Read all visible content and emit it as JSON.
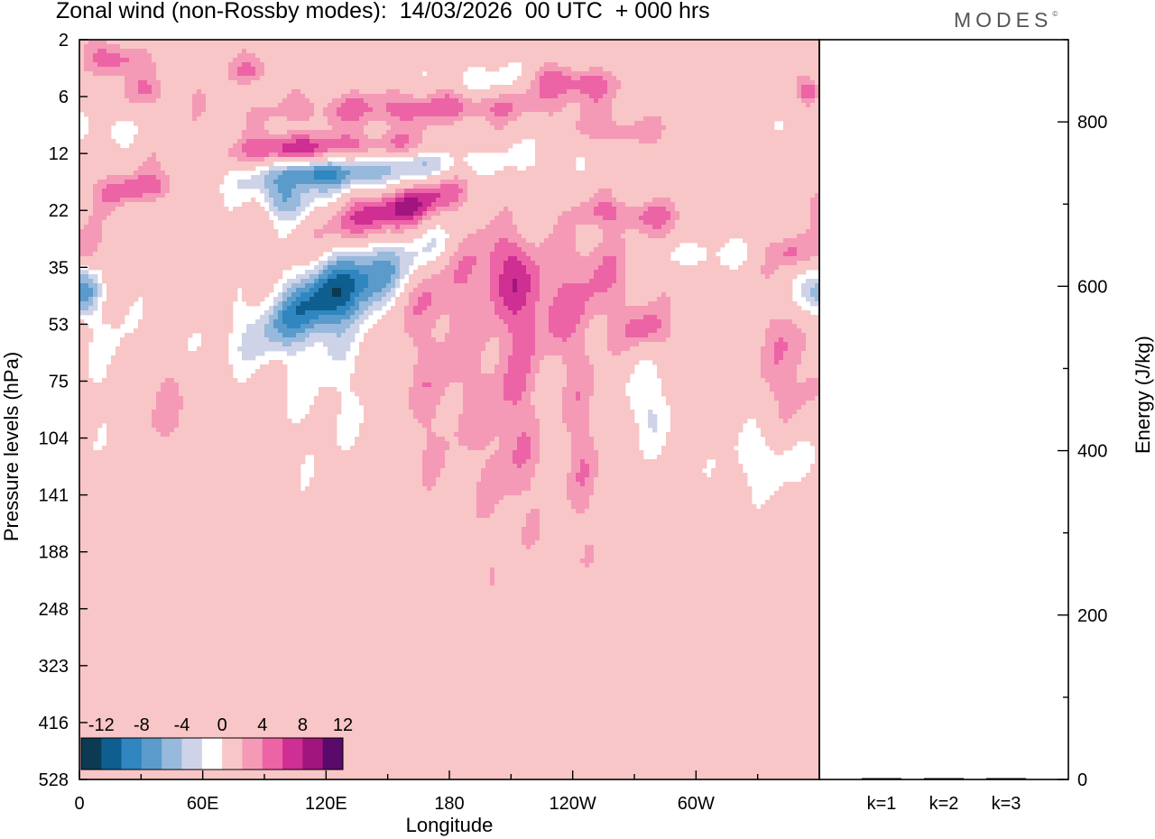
{
  "title": "Zonal wind (non-Rossby modes):  14/03/2026  00 UTC  + 000 hrs",
  "brand": "MODES",
  "brand_mark": "©",
  "chart_data": [
    {
      "type": "heatmap",
      "title": "Zonal wind (non-Rossby modes):  14/03/2026  00 UTC  + 000 hrs",
      "xlabel": "Longitude",
      "ylabel": "Pressure levels (hPa)",
      "x_ticks": [
        "0",
        "60E",
        "120E",
        "180",
        "120W",
        "60W"
      ],
      "x_tick_values": [
        0,
        60,
        120,
        180,
        240,
        300
      ],
      "xlim": [
        0,
        360
      ],
      "y_ticks": [
        "2",
        "6",
        "12",
        "22",
        "35",
        "53",
        "75",
        "104",
        "141",
        "188",
        "248",
        "323",
        "416",
        "528"
      ],
      "colorbar": {
        "labels": [
          "-12",
          "-8",
          "-4",
          "0",
          "4",
          "8",
          "12"
        ],
        "levels": [
          -14,
          -12,
          -10,
          -8,
          -6,
          -4,
          -2,
          2,
          4,
          6,
          8,
          10,
          12,
          14
        ],
        "colors": [
          "#0b3a52",
          "#0e5f8f",
          "#2f86c0",
          "#5b9bcb",
          "#97b9dc",
          "#cfd3e8",
          "#ffffff",
          "#f8c6c6",
          "#f49ab6",
          "#ec64a6",
          "#cf2e92",
          "#a1157f",
          "#5a0a6a"
        ]
      },
      "features": [
        {
          "lon": 140,
          "lev": 2.2,
          "w": 62,
          "h": 0.45,
          "slope": 60,
          "v": -10
        },
        {
          "lon": 130,
          "lev": 1.95,
          "w": 55,
          "h": 0.32,
          "slope": 60,
          "v": 10
        },
        {
          "lon": 152,
          "lev": 3.0,
          "w": 24,
          "h": 0.55,
          "slope": 40,
          "v": 9
        },
        {
          "lon": 134,
          "lev": 4.3,
          "w": 28,
          "h": 1.05,
          "slope": 40,
          "v": -12
        },
        {
          "lon": 100,
          "lev": 2.85,
          "w": 12,
          "h": 0.35,
          "slope": 0,
          "v": -6
        },
        {
          "lon": 18,
          "lev": 0.35,
          "w": 13,
          "h": 0.3,
          "slope": 0,
          "v": 6
        },
        {
          "lon": 30,
          "lev": 2.6,
          "w": 25,
          "h": 0.3,
          "slope": 30,
          "v": 6
        },
        {
          "lon": 165,
          "lev": 1.2,
          "w": 75,
          "h": 0.3,
          "slope": 60,
          "v": 5
        },
        {
          "lon": 210,
          "lev": 4.1,
          "w": 20,
          "h": 1.4,
          "slope": -15,
          "v": 5
        },
        {
          "lon": 250,
          "lev": 4.2,
          "w": 20,
          "h": 1.0,
          "slope": 0,
          "v": 4
        },
        {
          "lon": 210,
          "lev": 6.6,
          "w": 14,
          "h": 2.3,
          "slope": 0,
          "v": 4
        },
        {
          "lon": 120,
          "lev": 5.3,
          "w": 25,
          "h": 2.2,
          "slope": 0,
          "v": -3
        },
        {
          "lon": 176,
          "lev": 5.8,
          "w": 20,
          "h": 2.0,
          "slope": 0,
          "v": 3
        },
        {
          "lon": 165,
          "lev": 4.0,
          "w": 25,
          "h": 0.8,
          "slope": 0,
          "v": 4
        },
        {
          "lon": 280,
          "lev": 3.1,
          "w": 18,
          "h": 0.25,
          "slope": 0,
          "v": 4
        },
        {
          "lon": 277,
          "lev": 5.1,
          "w": 12,
          "h": 0.4,
          "slope": 0,
          "v": 5
        },
        {
          "lon": 276,
          "lev": 6.4,
          "w": 14,
          "h": 0.8,
          "slope": 0,
          "v": -4
        },
        {
          "lon": 300,
          "lev": 3.7,
          "w": 22,
          "h": 0.35,
          "slope": 0,
          "v": -4
        },
        {
          "lon": 336,
          "lev": 7.4,
          "w": 22,
          "h": 0.6,
          "slope": 0,
          "v": -4
        },
        {
          "lon": 347,
          "lev": 5.6,
          "w": 14,
          "h": 1.3,
          "slope": 0,
          "v": 4
        },
        {
          "lon": 356,
          "lev": 4.5,
          "w": 10,
          "h": 0.45,
          "slope": 0,
          "v": -6
        },
        {
          "lon": 4,
          "lev": 4.4,
          "w": 8,
          "h": 0.4,
          "slope": 0,
          "v": -5
        },
        {
          "lon": 238,
          "lev": 0.75,
          "w": 22,
          "h": 0.28,
          "slope": 0,
          "v": 6
        },
        {
          "lon": 260,
          "lev": 1.6,
          "w": 24,
          "h": 0.25,
          "slope": 0,
          "v": 4
        },
        {
          "lon": 290,
          "lev": 3.5,
          "w": 14,
          "h": 0.25,
          "slope": 0,
          "v": 3
        },
        {
          "lon": 200,
          "lev": 0.7,
          "w": 24,
          "h": 0.28,
          "slope": 0,
          "v": -4
        },
        {
          "lon": 8,
          "lev": 1.55,
          "w": 22,
          "h": 0.3,
          "slope": 0,
          "v": -3
        },
        {
          "lon": 34,
          "lev": 0.9,
          "w": 20,
          "h": 0.28,
          "slope": 0,
          "v": 3
        },
        {
          "lon": 85,
          "lev": 0.55,
          "w": 14,
          "h": 0.25,
          "slope": 0,
          "v": 4
        },
        {
          "lon": 355,
          "lev": 0.9,
          "w": 6,
          "h": 0.25,
          "slope": 0,
          "v": 6
        },
        {
          "lon": 40,
          "lev": 6.4,
          "w": 10,
          "h": 0.9,
          "slope": 0,
          "v": 3
        },
        {
          "lon": 15,
          "lev": 5.5,
          "w": 16,
          "h": 1.2,
          "slope": 0,
          "v": -2.5
        },
        {
          "lon": 255,
          "lev": 3.0,
          "w": 15,
          "h": 0.25,
          "slope": 0,
          "v": 3
        },
        {
          "lon": 347,
          "lev": 3.75,
          "w": 12,
          "h": 0.28,
          "slope": 0,
          "v": 4
        },
        {
          "lon": 100,
          "lev": 1.9,
          "w": 14,
          "h": 0.25,
          "slope": 0,
          "v": 4
        },
        {
          "lon": 5,
          "lev": 3.6,
          "w": 6,
          "h": 0.5,
          "slope": 0,
          "v": 4
        },
        {
          "lon": 110,
          "lev": 2.3,
          "w": 14,
          "h": 0.25,
          "slope": 0,
          "v": -4
        },
        {
          "lon": 245,
          "lev": 7.2,
          "w": 10,
          "h": 1.6,
          "slope": 0,
          "v": 3
        }
      ]
    },
    {
      "type": "bar",
      "ylabel": "Energy (J/kg)",
      "categories": [
        "k=1",
        "k=2",
        "k=3"
      ],
      "values": [
        0,
        0,
        0
      ],
      "ylim": [
        0,
        900
      ],
      "y_ticks": [
        "0",
        "200",
        "400",
        "600",
        "800"
      ],
      "y_tick_values": [
        0,
        200,
        400,
        600,
        800
      ]
    }
  ]
}
